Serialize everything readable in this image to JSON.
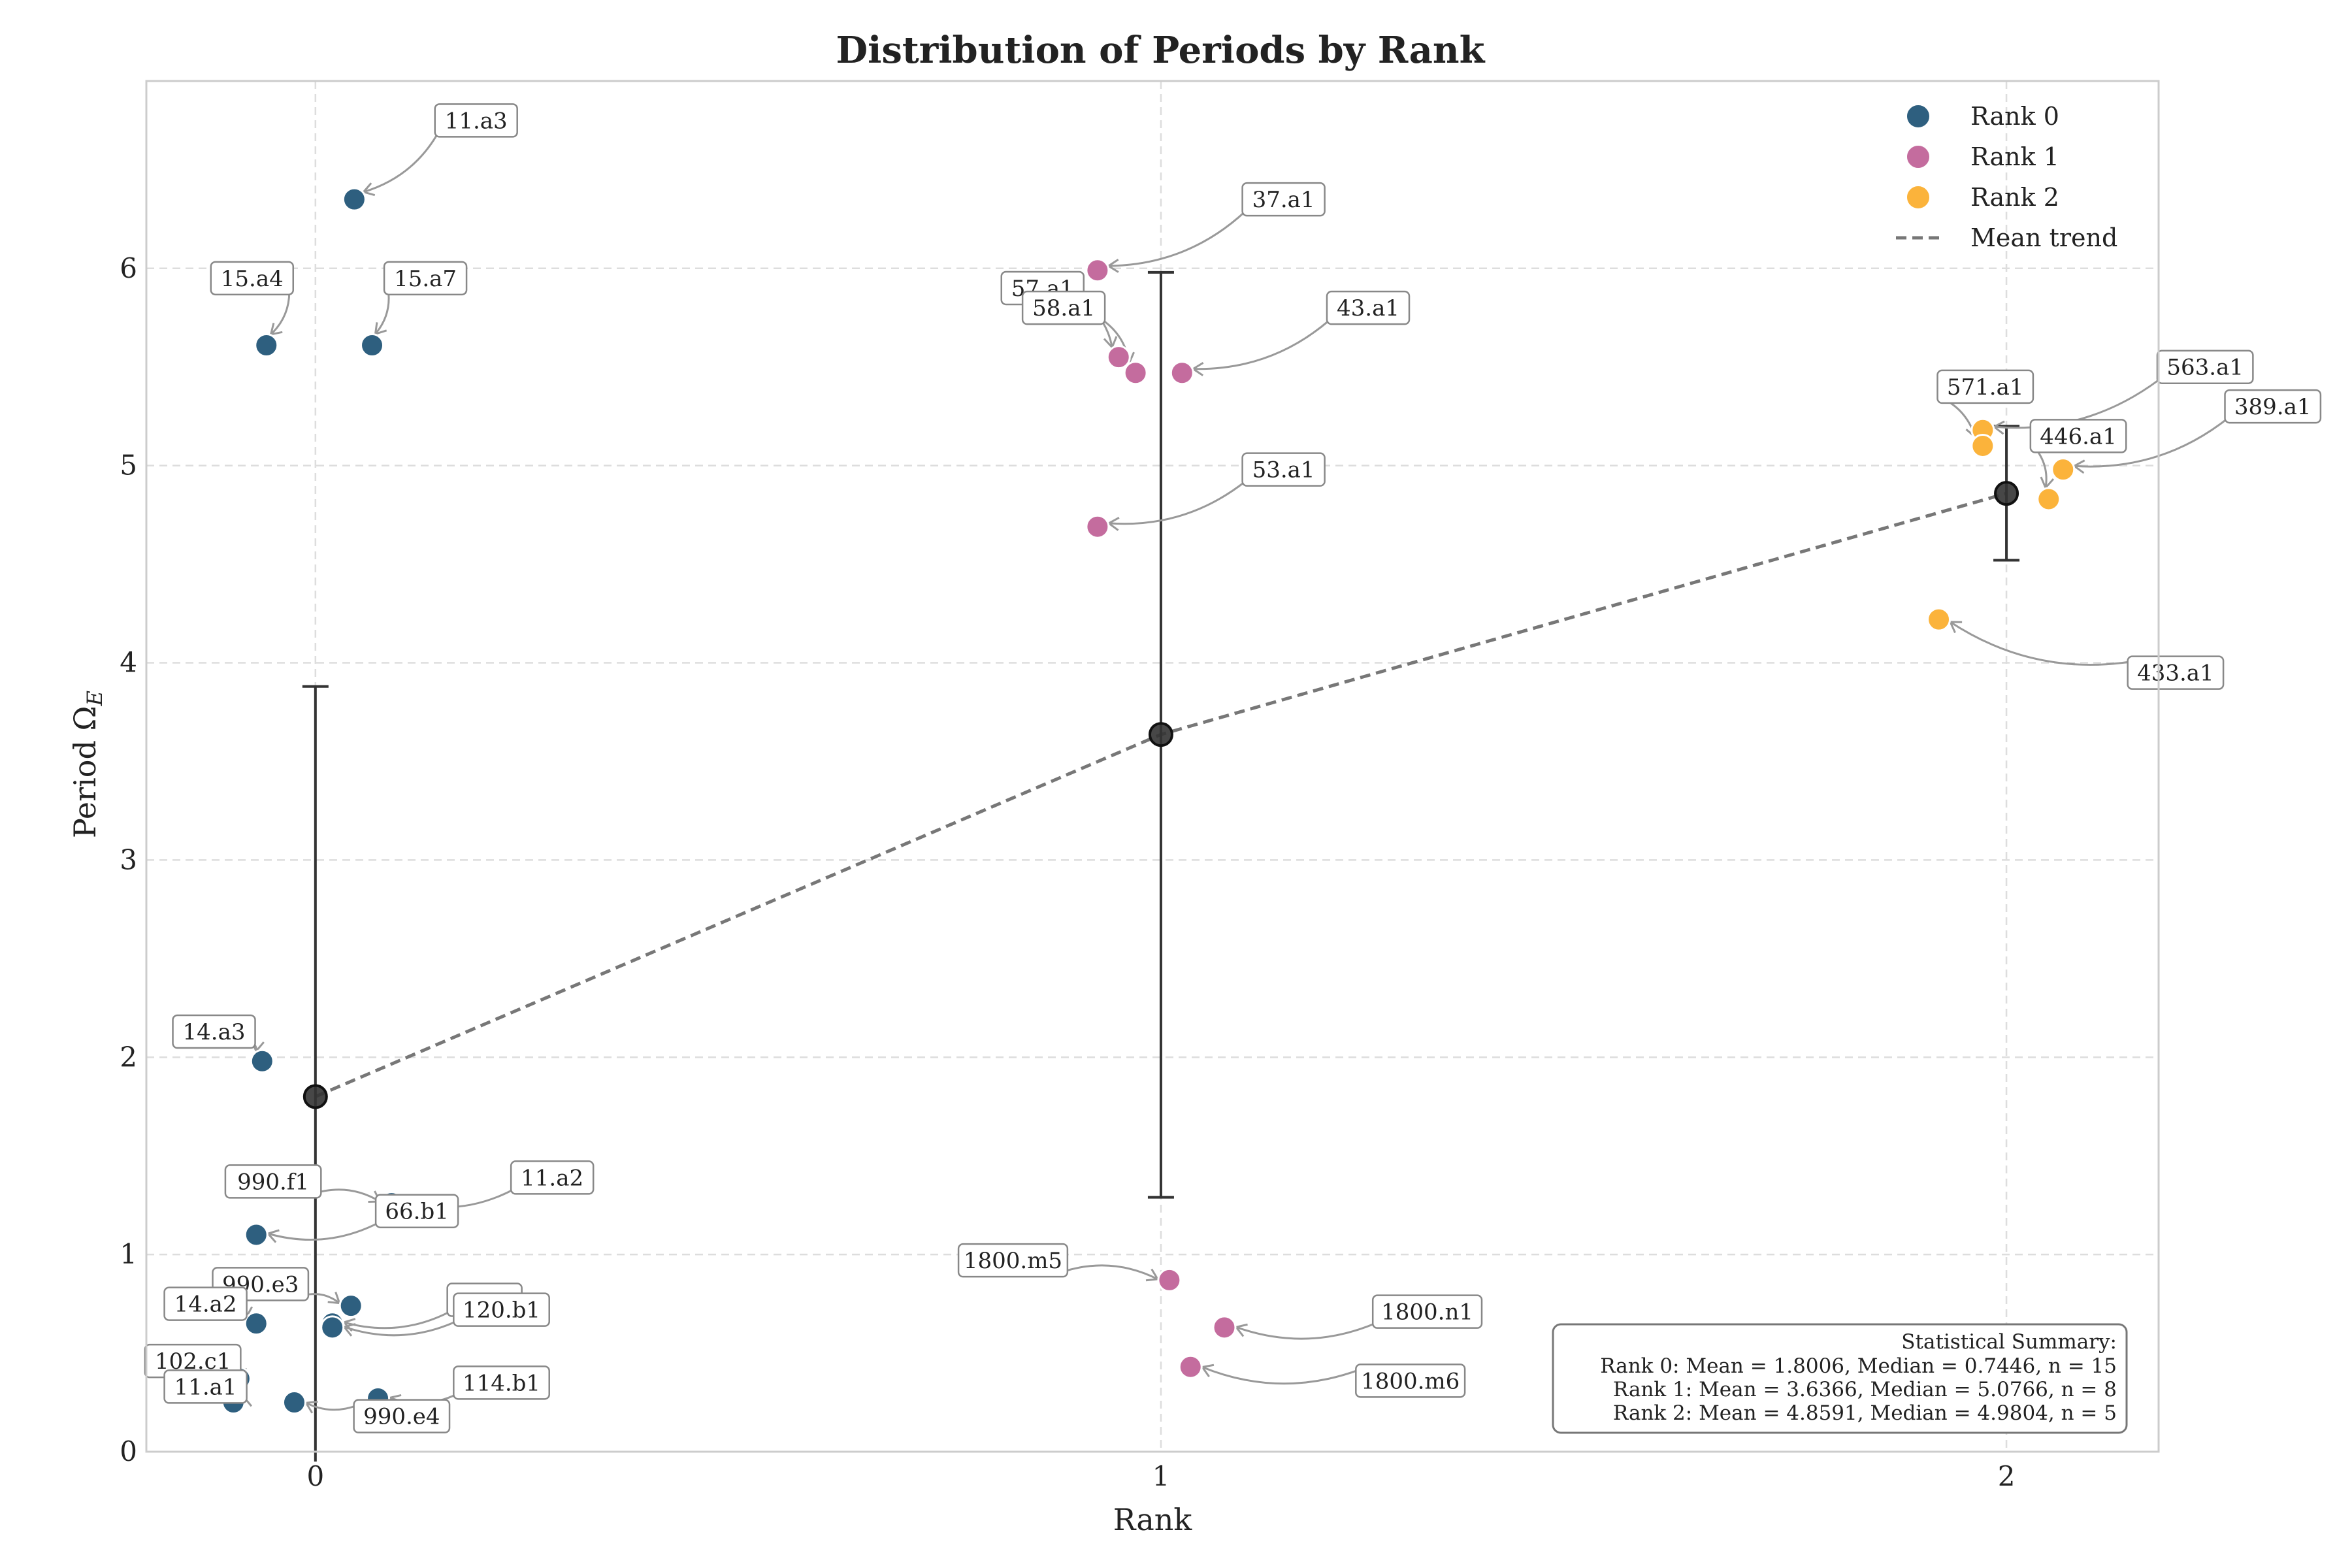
{
  "chart_data": {
    "type": "scatter",
    "title": "Distribution of Periods by Rank",
    "xlabel": "Rank",
    "ylabel": "Period Ω",
    "ylabel_sub": "E",
    "xlim": [
      -0.2,
      2.18
    ],
    "ylim": [
      0,
      6.95
    ],
    "xticks": [
      0,
      1,
      2
    ],
    "yticks": [
      0,
      1,
      2,
      3,
      4,
      5,
      6
    ],
    "grid": true,
    "legend_position": "top-right",
    "colors": {
      "rank0": "#2e5f7f",
      "rank1": "#c46c9e",
      "rank2": "#fbb33b",
      "mean": "#222222",
      "trend": "#777777",
      "arrow": "#999999"
    },
    "legend": [
      {
        "label": "Rank 0",
        "kind": "marker",
        "color_key": "rank0"
      },
      {
        "label": "Rank 1",
        "kind": "marker",
        "color_key": "rank1"
      },
      {
        "label": "Rank 2",
        "kind": "marker",
        "color_key": "rank2"
      },
      {
        "label": "Mean trend",
        "kind": "dashed-line",
        "color_key": "trend"
      }
    ],
    "series": [
      {
        "name": "Rank 0",
        "color_key": "rank0",
        "points": [
          {
            "label": "11.a3",
            "x": 0.046,
            "y": 6.35,
            "lx": 0.19,
            "ly": 6.75
          },
          {
            "label": "15.a4",
            "x": -0.058,
            "y": 5.61,
            "lx": -0.075,
            "ly": 5.95
          },
          {
            "label": "15.a7",
            "x": 0.067,
            "y": 5.61,
            "lx": 0.13,
            "ly": 5.95
          },
          {
            "label": "14.a3",
            "x": -0.063,
            "y": 1.98,
            "lx": -0.12,
            "ly": 2.13
          },
          {
            "label": "990.f1",
            "x": 0.09,
            "y": 1.26,
            "lx": -0.05,
            "ly": 1.37
          },
          {
            "label": "11.a2",
            "x": 0.09,
            "y": 1.26,
            "lx": 0.28,
            "ly": 1.39
          },
          {
            "label": "66.b1",
            "x": -0.07,
            "y": 1.1,
            "lx": 0.12,
            "ly": 1.22
          },
          {
            "label": "990.e3",
            "x": 0.042,
            "y": 0.74,
            "lx": -0.065,
            "ly": 0.85
          },
          {
            "label": "",
            "x": 0.02,
            "y": 0.65,
            "lx": 0.2,
            "ly": 0.77
          },
          {
            "label": "120.b1",
            "x": 0.02,
            "y": 0.63,
            "lx": 0.22,
            "ly": 0.72
          },
          {
            "label": "14.a2",
            "x": -0.07,
            "y": 0.65,
            "lx": -0.13,
            "ly": 0.75
          },
          {
            "label": "102.c1",
            "x": -0.09,
            "y": 0.37,
            "lx": -0.145,
            "ly": 0.46
          },
          {
            "label": "11.a1",
            "x": -0.097,
            "y": 0.25,
            "lx": -0.13,
            "ly": 0.33
          },
          {
            "label": "990.e4",
            "x": -0.025,
            "y": 0.25,
            "lx": 0.102,
            "ly": 0.18
          },
          {
            "label": "114.b1",
            "x": 0.074,
            "y": 0.27,
            "lx": 0.22,
            "ly": 0.35
          }
        ]
      },
      {
        "name": "Rank 1",
        "color_key": "rank1",
        "points": [
          {
            "label": "37.a1",
            "x": 0.925,
            "y": 5.99,
            "lx": 1.145,
            "ly": 6.35
          },
          {
            "label": "57.a1",
            "x": 0.95,
            "y": 5.55,
            "lx": 0.86,
            "ly": 5.9
          },
          {
            "label": "58.a1",
            "x": 0.97,
            "y": 5.47,
            "lx": 0.885,
            "ly": 5.8
          },
          {
            "label": "43.a1",
            "x": 1.025,
            "y": 5.47,
            "lx": 1.245,
            "ly": 5.8
          },
          {
            "label": "53.a1",
            "x": 0.925,
            "y": 4.69,
            "lx": 1.145,
            "ly": 4.98
          },
          {
            "label": "1800.m5",
            "x": 1.01,
            "y": 0.87,
            "lx": 0.825,
            "ly": 0.97
          },
          {
            "label": "1800.n1",
            "x": 1.075,
            "y": 0.63,
            "lx": 1.315,
            "ly": 0.71
          },
          {
            "label": "1800.m6",
            "x": 1.035,
            "y": 0.43,
            "lx": 1.295,
            "ly": 0.36
          }
        ]
      },
      {
        "name": "Rank 2",
        "color_key": "rank2",
        "points": [
          {
            "label": "563.a1",
            "x": 1.972,
            "y": 5.18,
            "lx": 2.235,
            "ly": 5.5
          },
          {
            "label": "571.a1",
            "x": 1.972,
            "y": 5.1,
            "lx": 1.975,
            "ly": 5.4
          },
          {
            "label": "389.a1",
            "x": 2.067,
            "y": 4.98,
            "lx": 2.315,
            "ly": 5.3
          },
          {
            "label": "446.a1",
            "x": 2.05,
            "y": 4.83,
            "lx": 2.085,
            "ly": 5.15
          },
          {
            "label": "433.a1",
            "x": 1.92,
            "y": 4.22,
            "lx": 2.2,
            "ly": 3.95
          }
        ]
      }
    ],
    "means": [
      {
        "x": 0,
        "y": 1.8006,
        "err_low": -0.05,
        "err_high": 3.88
      },
      {
        "x": 1,
        "y": 3.6366,
        "err_low": 1.29,
        "err_high": 5.98
      },
      {
        "x": 2,
        "y": 4.8591,
        "err_low": 4.52,
        "err_high": 5.2
      }
    ],
    "summary": {
      "title": "Statistical Summary:",
      "lines": [
        "Rank 0: Mean = 1.8006, Median = 0.7446, n = 15",
        "Rank 1: Mean = 3.6366, Median = 5.0766, n = 8",
        "Rank 2: Mean = 4.8591, Median = 4.9804, n = 5"
      ]
    }
  }
}
